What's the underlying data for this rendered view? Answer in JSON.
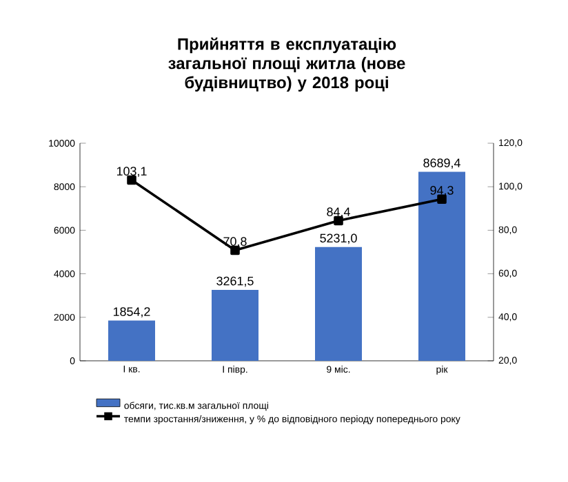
{
  "chart_data": {
    "type": "bar",
    "title": "Прийняття в експлуатацію загальної площі житла (нове будівництво) у 2018 році",
    "categories": [
      "I кв.",
      "I півр.",
      "9 міс.",
      "рік"
    ],
    "series": [
      {
        "name": "обсяги,  тис.кв.м загальної площі",
        "color": "#4472c4",
        "values": [
          1854.2,
          3261.5,
          5231.0,
          8689.4
        ],
        "value_labels": [
          "1854,2",
          "3261,5",
          "5231,0",
          "8689,4"
        ]
      },
      {
        "name": "темпи зростання/зниження,  у % до відповідного  періоду попереднього  року",
        "type": "line",
        "axis": "y2",
        "color": "#000000",
        "marker": "square",
        "values": [
          103.1,
          70.8,
          84.4,
          94.3
        ],
        "value_labels": [
          "103,1",
          "70,8",
          "84,4",
          "94,3"
        ]
      }
    ],
    "ylim": [
      0,
      10000
    ],
    "yticks": [
      0,
      2000,
      4000,
      6000,
      8000,
      10000
    ],
    "y2lim": [
      20,
      120
    ],
    "y2ticks": [
      {
        "value": 20,
        "label": "20,0"
      },
      {
        "value": 40,
        "label": "40,0"
      },
      {
        "value": 60,
        "label": "60,0"
      },
      {
        "value": 80,
        "label": "80,0"
      },
      {
        "value": 100,
        "label": "100,0"
      },
      {
        "value": 120,
        "label": "120,0"
      }
    ],
    "legend": "bottom"
  }
}
